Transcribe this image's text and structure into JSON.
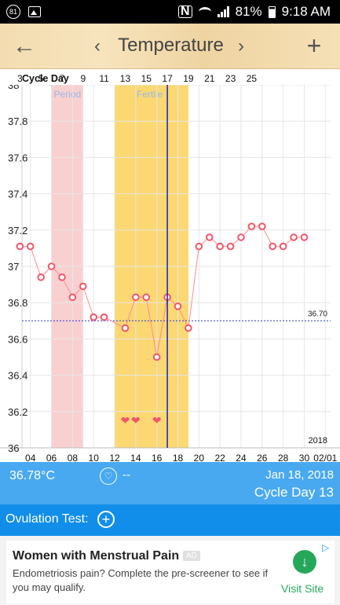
{
  "status_bar": {
    "notification_count": "81",
    "battery": "81%",
    "time": "9:18 AM",
    "icons": [
      "notification-badge-icon",
      "image-icon",
      "nfc-icon",
      "wifi-icon",
      "signal-icon",
      "battery-icon"
    ]
  },
  "app_bar": {
    "title": "Temperature",
    "back_icon": "arrow-left-icon",
    "prev_icon": "chevron-left-icon",
    "next_icon": "chevron-right-icon",
    "add_icon": "plus-icon"
  },
  "chart_labels": {
    "cycle_day_label": "Cycle Day",
    "period_label": "Period",
    "fertile_label": "Fertile",
    "coverline_label": "36.70",
    "year_label": "2018"
  },
  "chart_data": {
    "type": "line",
    "title": "",
    "ylabel": "",
    "xlabel": "",
    "ylim": [
      36.0,
      38.0
    ],
    "y_ticks": [
      "38",
      "37.8",
      "37.6",
      "37.4",
      "37.2",
      "37",
      "36.8",
      "36.6",
      "36.4",
      "36.2",
      "36"
    ],
    "cycle_day_ticks": [
      "3",
      "5",
      "7",
      "9",
      "11",
      "13",
      "15",
      "17",
      "19",
      "21",
      "23",
      "25"
    ],
    "cycle_day_tick_days": [
      3,
      5,
      7,
      9,
      11,
      13,
      15,
      17,
      19,
      21,
      23,
      25
    ],
    "date_ticks": [
      "04",
      "06",
      "08",
      "10",
      "12",
      "14",
      "16",
      "18",
      "20",
      "22",
      "24",
      "26",
      "28",
      "30",
      "02/01"
    ],
    "date_tick_days": [
      4,
      6,
      8,
      10,
      12,
      14,
      16,
      18,
      20,
      22,
      24,
      26,
      28,
      30,
      32
    ],
    "x_range_days": [
      3.2,
      32.5
    ],
    "series": [
      {
        "x": [
          3,
          4,
          5,
          6,
          7,
          8,
          9,
          10,
          11,
          13,
          14,
          15,
          16,
          17,
          18,
          19,
          20,
          21,
          22,
          23,
          24,
          25,
          26,
          27,
          28,
          29,
          30
        ],
        "values": [
          37.11,
          37.11,
          36.94,
          37.0,
          36.94,
          36.83,
          36.89,
          36.72,
          36.72,
          36.66,
          36.83,
          36.83,
          36.5,
          36.83,
          36.78,
          36.66,
          37.11,
          37.16,
          37.11,
          37.11,
          37.16,
          37.22,
          37.22,
          37.11,
          37.11,
          37.16,
          37.16
        ]
      }
    ],
    "coverline": 36.7,
    "period_range": [
      6,
      9
    ],
    "fertile_range": [
      12,
      19
    ],
    "intercourse_days": [
      13,
      14,
      16
    ],
    "selected_day": 17,
    "colors": {
      "line": "#ff8c8c",
      "marker": "#f0566b",
      "period_band": "#f9d0d0",
      "fertile_band": "#fbd872",
      "coverline": "#2233dd",
      "selected_line": "#1a22b0",
      "selected_dot": "#ff4aa8",
      "heart": "#f0566b",
      "band_label": "#98b8e8"
    }
  },
  "summary": {
    "temperature": "36.78°C",
    "heart_icon": "heart-outline-icon",
    "intercourse": "--",
    "date": "Jan 18, 2018",
    "cycle_day": "Cycle Day 13"
  },
  "ovulation": {
    "label": "Ovulation Test:",
    "add_icon": "plus-circle-icon"
  },
  "ad": {
    "headline": "Women with Menstrual Pain",
    "tag": "AD",
    "body": "Endometriosis pain? Complete the pre-screener to see if you may qualify.",
    "cta": "Visit Site",
    "download_icon": "arrow-down-icon",
    "adchoices_icon": "adchoices-icon"
  }
}
